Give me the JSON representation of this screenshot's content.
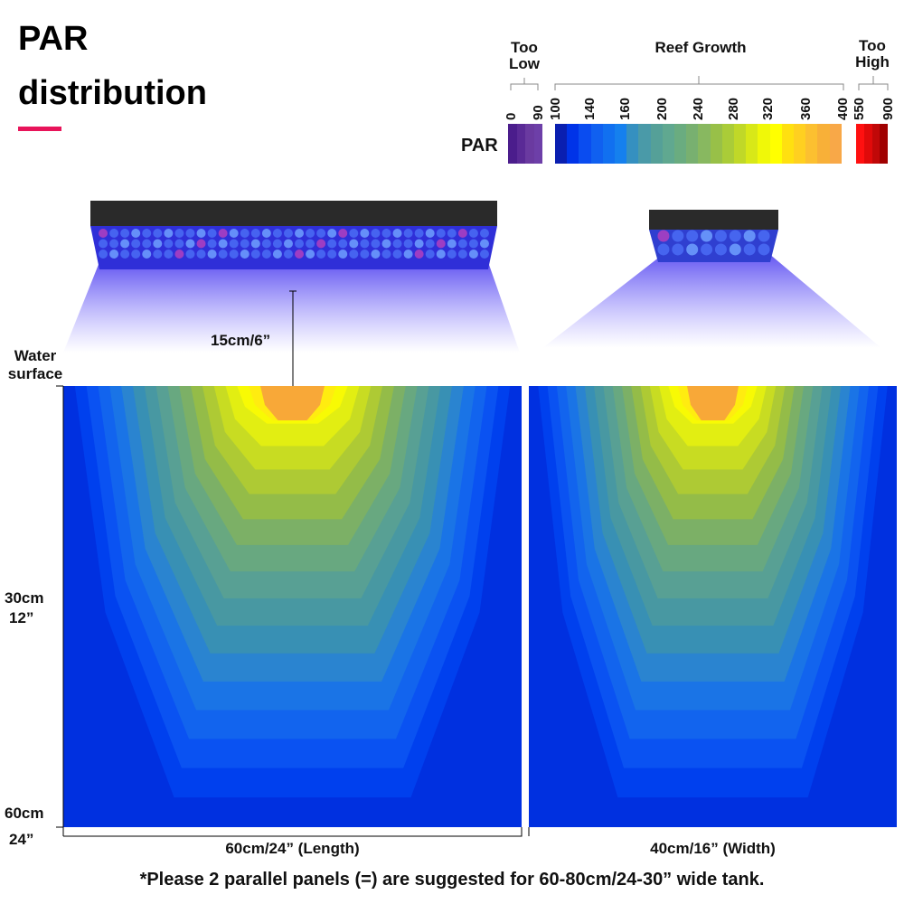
{
  "title": {
    "line1": "PAR",
    "line2": "distribution"
  },
  "accent": "#e8145a",
  "legend": {
    "par_label": "PAR",
    "too_low": {
      "label": "Too Low",
      "ticks": [
        "0",
        "90"
      ],
      "colors": [
        "#4b1d8c",
        "#5a2a96",
        "#6a3aa0",
        "#6d3fa8"
      ]
    },
    "reef_growth": {
      "label": "Reef Growth",
      "ticks": [
        "100",
        "140",
        "160",
        "200",
        "240",
        "280",
        "320",
        "360",
        "400"
      ],
      "colors": [
        "#0a1fb0",
        "#0033e8",
        "#0a4cf0",
        "#1060f0",
        "#1170f0",
        "#1580ee",
        "#3590c0",
        "#4a9aa8",
        "#55a098",
        "#60a890",
        "#6aac80",
        "#78b070",
        "#88b860",
        "#98c048",
        "#aacc38",
        "#c0d828",
        "#d8e818",
        "#f0f808",
        "#ffff00",
        "#ffe010",
        "#ffd020",
        "#fcc030",
        "#f8b038",
        "#f8a848"
      ]
    },
    "too_high": {
      "label": "Too High",
      "ticks": [
        "550",
        "900"
      ],
      "colors": [
        "#ff1010",
        "#e00a0a",
        "#c00808",
        "#a00000"
      ]
    }
  },
  "labels": {
    "height": "15cm/6”",
    "water_surface": "Water surface",
    "depth_30": "30cm",
    "depth_30_in": "12”",
    "depth_60": "60cm",
    "depth_60_in": "24”",
    "length": "60cm/24”  (Length)",
    "width": "40cm/16”  (Width)"
  },
  "footnote": "*Please 2 parallel panels (=) are suggested for 60-80cm/24-30”  wide tank.",
  "contour_colors": [
    "#0030e0",
    "#0040ee",
    "#0a52f2",
    "#1264ee",
    "#1a74e6",
    "#2a84d0",
    "#3890b4",
    "#4898a2",
    "#58a094",
    "#68a880",
    "#7cb066",
    "#94bc48",
    "#aeca34",
    "#c8dc22",
    "#e2ee12",
    "#f8fa04",
    "#ffec10",
    "#f8a838"
  ]
}
